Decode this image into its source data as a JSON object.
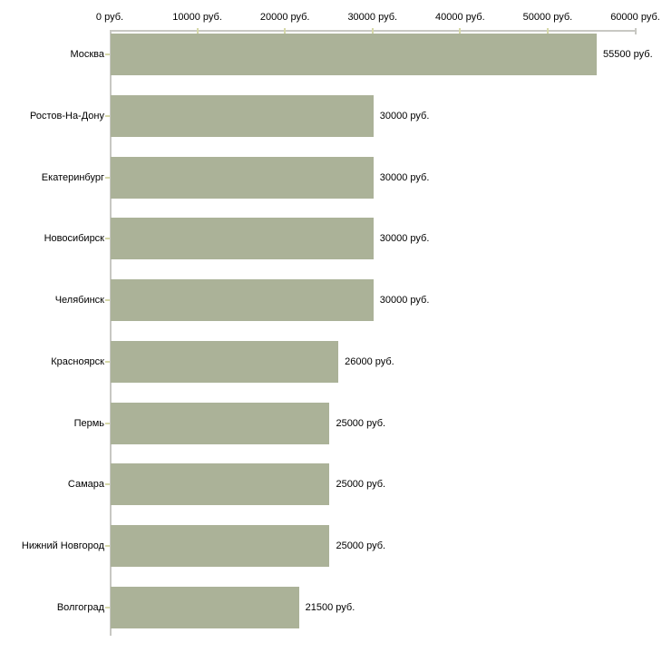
{
  "chart_data": {
    "type": "bar",
    "orientation": "horizontal",
    "unit": "руб.",
    "axis_position": "top",
    "grid": false,
    "legend": false,
    "xlim": [
      0,
      60000
    ],
    "x_tick_values": [
      0,
      10000,
      20000,
      30000,
      40000,
      50000,
      60000
    ],
    "x_tick_labels": [
      "0 руб.",
      "10000 руб.",
      "20000 руб.",
      "30000 руб.",
      "40000 руб.",
      "50000 руб.",
      "60000 руб."
    ],
    "categories": [
      "Москва",
      "Ростов-На-Дону",
      "Екатеринбург",
      "Новосибирск",
      "Челябинск",
      "Красноярск",
      "Пермь",
      "Самара",
      "Нижний Новгород",
      "Волгоград"
    ],
    "values": [
      55500,
      30000,
      30000,
      30000,
      30000,
      26000,
      25000,
      25000,
      25000,
      21500
    ],
    "value_labels": [
      "55500 руб.",
      "30000 руб.",
      "30000 руб.",
      "30000 руб.",
      "30000 руб.",
      "26000 руб.",
      "25000 руб.",
      "25000 руб.",
      "25000 руб.",
      "21500 руб."
    ],
    "colors": {
      "bar": "#abb298",
      "axis": "#c8c8c3",
      "tick": "#d6d8a8",
      "text": "#000000",
      "background": "#ffffff"
    }
  }
}
